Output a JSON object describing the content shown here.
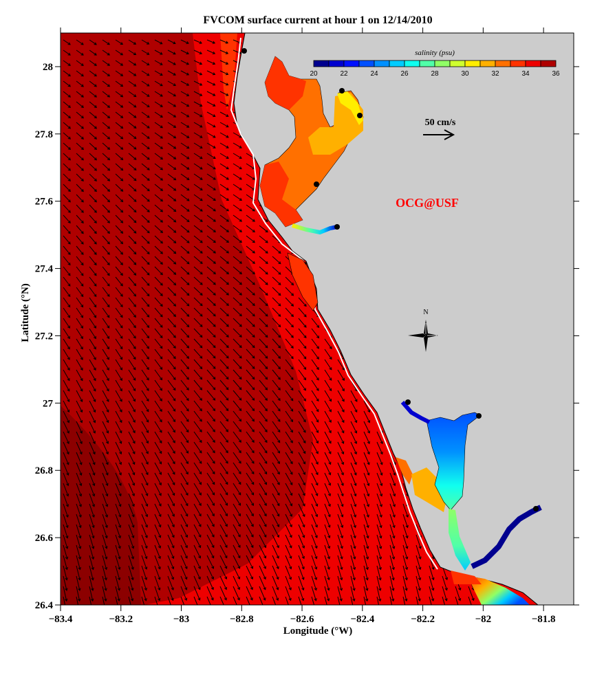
{
  "title": "FVCOM surface current at hour 1 on 12/14/2010",
  "xlabel": "Longitude (°W)",
  "ylabel": "Latitude (°N)",
  "x_ticks": [
    "−83.4",
    "−83.2",
    "−83",
    "−82.8",
    "−82.6",
    "−82.4",
    "−82.2",
    "−82",
    "−81.8"
  ],
  "y_ticks": [
    "28",
    "27.8",
    "27.6",
    "27.4",
    "27.2",
    "27",
    "26.8",
    "26.6",
    "26.4"
  ],
  "colorbar": {
    "title": "salinity (psu)",
    "range": [
      20,
      36
    ],
    "labels": [
      "20",
      "22",
      "24",
      "26",
      "28",
      "30",
      "32",
      "34",
      "36"
    ],
    "colors": [
      "#00008f",
      "#0000cf",
      "#0010ff",
      "#0050ff",
      "#0090ff",
      "#00ccff",
      "#10ffef",
      "#50ffa8",
      "#90ff66",
      "#cfff2f",
      "#ffee00",
      "#ffb000",
      "#ff7000",
      "#ff3300",
      "#ee0000",
      "#af0000"
    ]
  },
  "scale_arrow": {
    "label": "50 cm/s"
  },
  "credit": "OCG@USF",
  "compass": {
    "label": "N"
  },
  "colors": {
    "land": "#cccccc",
    "offshore": "#af0000",
    "offshore_deep": "#8c0000",
    "coastal": "#ee0000",
    "bay_orange": "#ff7000",
    "bay_light": "#ffb000",
    "credit": "#ff0000"
  },
  "chart_data": {
    "type": "heatmap",
    "xlim": [
      -83.4,
      -81.7
    ],
    "ylim": [
      26.4,
      28.1
    ],
    "xlabel": "Longitude (°W)",
    "ylabel": "Latitude (°N)",
    "colorbar_variable": "salinity (psu)",
    "overlay": "surface current vectors"
  }
}
